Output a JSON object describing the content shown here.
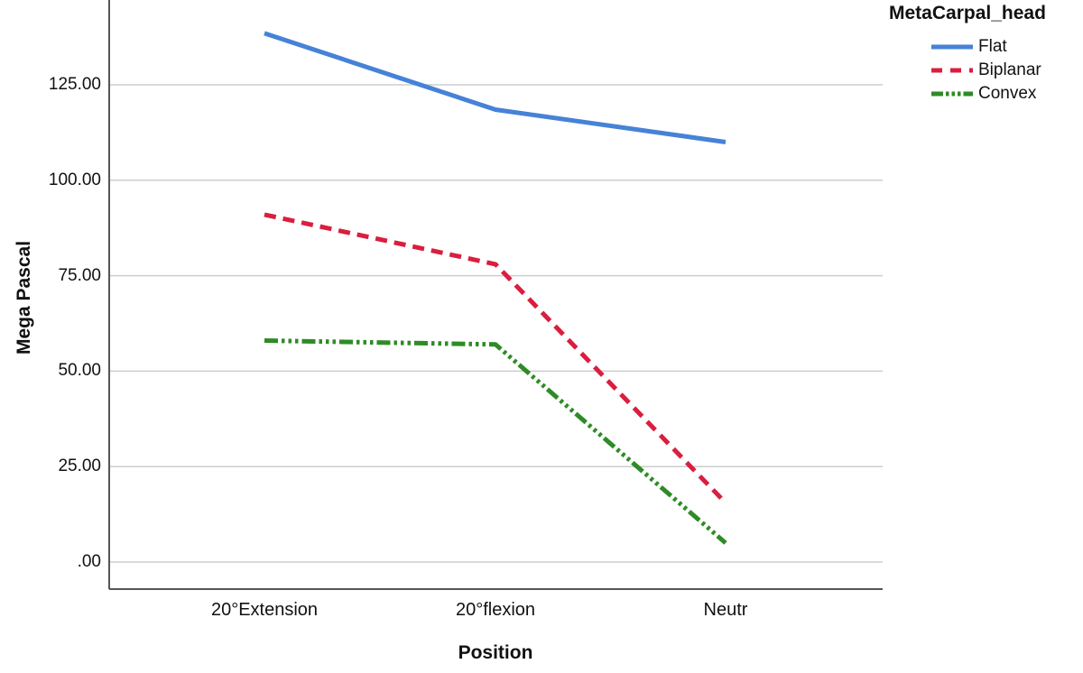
{
  "chart_data": {
    "type": "line",
    "title": "",
    "legend_title": "MetaCarpal_head",
    "legend_position": "top-right",
    "xlabel": "Position",
    "ylabel": "Mega Pascal",
    "categories": [
      "20°Extension",
      "20°flexion",
      "Neutr"
    ],
    "series": [
      {
        "name": "Flat",
        "values": [
          138.5,
          118.5,
          110.0
        ],
        "color": "#4682d7",
        "line_style": "solid"
      },
      {
        "name": "Biplanar",
        "values": [
          91.0,
          78.0,
          15.5
        ],
        "color": "#d91e3f",
        "line_style": "dashed"
      },
      {
        "name": "Convex",
        "values": [
          58.0,
          57.0,
          5.0
        ],
        "color": "#2e8b26",
        "line_style": "dash-dot-dot"
      }
    ],
    "yticks": [
      {
        "value": 0,
        "label": ".00"
      },
      {
        "value": 25,
        "label": "25.00"
      },
      {
        "value": 50,
        "label": "50.00"
      },
      {
        "value": 75,
        "label": "75.00"
      },
      {
        "value": 100,
        "label": "100.00"
      },
      {
        "value": 125,
        "label": "125.00"
      }
    ],
    "ylim": [
      0,
      147
    ],
    "grid": "horizontal"
  },
  "colors": {
    "axis": "#555555",
    "gridline": "#cdcdcd",
    "text": "#111111",
    "background": "#ffffff"
  }
}
